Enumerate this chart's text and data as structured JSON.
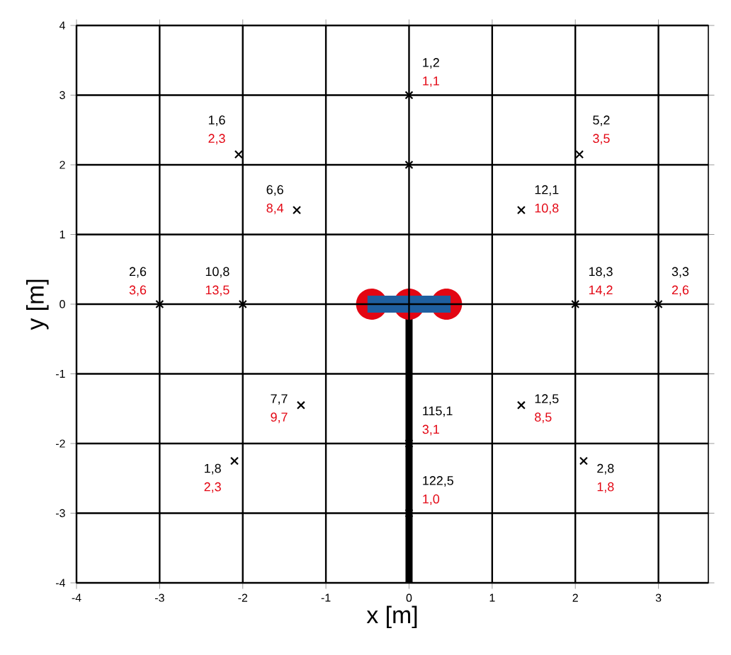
{
  "chart_data": {
    "type": "scatter",
    "xlabel": "x [m]",
    "ylabel": "y [m]",
    "xlim": [
      -4,
      3.6
    ],
    "ylim": [
      -4,
      4
    ],
    "xticks": [
      -4,
      -3,
      -2,
      -1,
      0,
      1,
      2,
      3
    ],
    "yticks": [
      -4,
      -3,
      -2,
      -1,
      0,
      1,
      2,
      3,
      4
    ],
    "grid": true,
    "marker": "cross",
    "series": [
      {
        "color": "#000000",
        "x": [
          0,
          0,
          -2.05,
          -1.35,
          2.05,
          1.35,
          -3,
          -2,
          2,
          3,
          -1.3,
          -2.1,
          1.35,
          2.1,
          0,
          0
        ],
        "values": [
          3,
          2,
          2.15,
          1.35,
          2.15,
          1.35,
          0,
          0,
          0,
          0,
          -1.45,
          -2.25,
          -1.45,
          -2.25,
          -2,
          -3
        ]
      }
    ],
    "annotations": [
      {
        "text": "1,2",
        "x": 0,
        "y": 3
      },
      {
        "text": "1,1",
        "x": 0,
        "y": 3
      },
      {
        "text": "1,6",
        "x": -2.05,
        "y": 2.15
      },
      {
        "text": "2,3",
        "x": -2.05,
        "y": 2.15
      },
      {
        "text": "6,6",
        "x": -1.35,
        "y": 1.35
      },
      {
        "text": "8,4",
        "x": -1.35,
        "y": 1.35
      },
      {
        "text": "5,2",
        "x": 2.05,
        "y": 2.15
      },
      {
        "text": "3,5",
        "x": 2.05,
        "y": 2.15
      },
      {
        "text": "12,1",
        "x": 1.35,
        "y": 1.35
      },
      {
        "text": "10,8",
        "x": 1.35,
        "y": 1.35
      },
      {
        "text": "2,6",
        "x": -3,
        "y": 0
      },
      {
        "text": "3,6",
        "x": -3,
        "y": 0
      },
      {
        "text": "10,8",
        "x": -2,
        "y": 0
      },
      {
        "text": "13,5",
        "x": -2,
        "y": 0
      },
      {
        "text": "18,3",
        "x": 2,
        "y": 0
      },
      {
        "text": "14,2",
        "x": 2,
        "y": 0
      },
      {
        "text": "3,3",
        "x": 3,
        "y": 0
      },
      {
        "text": "2,6",
        "x": 3,
        "y": 0
      },
      {
        "text": "7,7",
        "x": -1.3,
        "y": -1.45
      },
      {
        "text": "9,7",
        "x": -1.3,
        "y": -1.45
      },
      {
        "text": "1,8",
        "x": -2.1,
        "y": -2.25
      },
      {
        "text": "2,3",
        "x": -2.1,
        "y": -2.25
      },
      {
        "text": "12,5",
        "x": 1.35,
        "y": -1.45
      },
      {
        "text": "8,5",
        "x": 1.35,
        "y": -1.45
      },
      {
        "text": "2,8",
        "x": 2.1,
        "y": -2.25
      },
      {
        "text": "1,8",
        "x": 2.1,
        "y": -2.25
      },
      {
        "text": "115,1",
        "x": 0,
        "y": -2
      },
      {
        "text": "3,1",
        "x": 0,
        "y": -2
      },
      {
        "text": "122,5",
        "x": 0,
        "y": -3
      },
      {
        "text": "1,0",
        "x": 0,
        "y": -3
      }
    ]
  }
}
